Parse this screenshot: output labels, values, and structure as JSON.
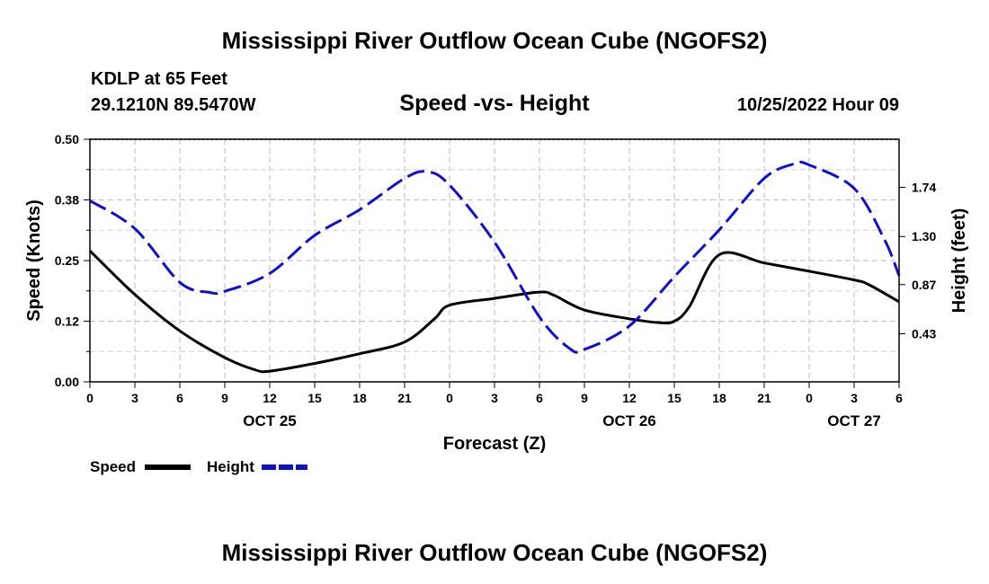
{
  "header": {
    "title": "Mississippi River Outflow Ocean Cube (NGOFS2)",
    "station": "KDLP at 65 Feet",
    "coordinates": "29.1210N  89.5470W",
    "datetime": "10/25/2022 Hour 09"
  },
  "footer": {
    "title": "Mississippi River Outflow Ocean Cube (NGOFS2)"
  },
  "chart_data": {
    "type": "line",
    "title": "Speed -vs- Height",
    "xlabel": "Forecast (Z)",
    "ylabel": "Speed (Knots)",
    "y2label": "Height (feet)",
    "x_ticks": [
      0,
      3,
      6,
      9,
      12,
      15,
      18,
      21,
      24,
      27,
      30,
      33,
      36,
      39,
      42,
      45,
      48,
      51,
      54
    ],
    "x_tick_labels": [
      "0",
      "3",
      "6",
      "9",
      "12",
      "15",
      "18",
      "21",
      "0",
      "3",
      "6",
      "9",
      "12",
      "15",
      "18",
      "21",
      "0",
      "3",
      "6"
    ],
    "xlim": [
      0,
      54
    ],
    "day_labels": [
      {
        "label": "OCT 25",
        "x": 12
      },
      {
        "label": "OCT 26",
        "x": 36
      },
      {
        "label": "OCT 27",
        "x": 51
      }
    ],
    "ylim": [
      0,
      0.5
    ],
    "y_ticks": [
      0.0,
      0.125,
      0.25,
      0.375,
      0.5
    ],
    "y_tick_labels": [
      "0.00",
      "0.12",
      "0.25",
      "0.38",
      "0.50"
    ],
    "y2lim": [
      0.0,
      2.17
    ],
    "y2_ticks": [
      0.43,
      0.87,
      1.3,
      1.74
    ],
    "y2_tick_labels": [
      "0.43",
      "0.87",
      "1.30",
      "1.74"
    ],
    "grid": true,
    "legend_position": "bottom-left",
    "series": [
      {
        "name": "Speed",
        "axis": "left",
        "color": "#000000",
        "dash": "solid",
        "x": [
          0,
          3,
          6,
          9,
          11,
          12,
          15,
          18,
          21,
          23,
          24,
          27,
          30,
          31,
          33,
          36,
          38,
          39,
          40,
          42,
          45,
          48,
          51,
          52,
          54
        ],
        "y": [
          0.27,
          0.18,
          0.105,
          0.05,
          0.025,
          0.022,
          0.038,
          0.058,
          0.082,
          0.13,
          0.158,
          0.172,
          0.185,
          0.178,
          0.148,
          0.13,
          0.122,
          0.125,
          0.155,
          0.262,
          0.245,
          0.228,
          0.21,
          0.2,
          0.165
        ]
      },
      {
        "name": "Height",
        "axis": "right",
        "color": "#1010cc",
        "dash": "dashed",
        "x": [
          0,
          3,
          6,
          8,
          9,
          12,
          15,
          18,
          21,
          22.5,
          24,
          27,
          30,
          32,
          33,
          36,
          39,
          42,
          45,
          47,
          48,
          51,
          53,
          54
        ],
        "y": [
          1.62,
          1.37,
          0.89,
          0.8,
          0.81,
          0.97,
          1.31,
          1.54,
          1.82,
          1.88,
          1.76,
          1.25,
          0.58,
          0.3,
          0.29,
          0.5,
          0.94,
          1.36,
          1.82,
          1.95,
          1.94,
          1.73,
          1.28,
          0.95
        ]
      }
    ]
  }
}
